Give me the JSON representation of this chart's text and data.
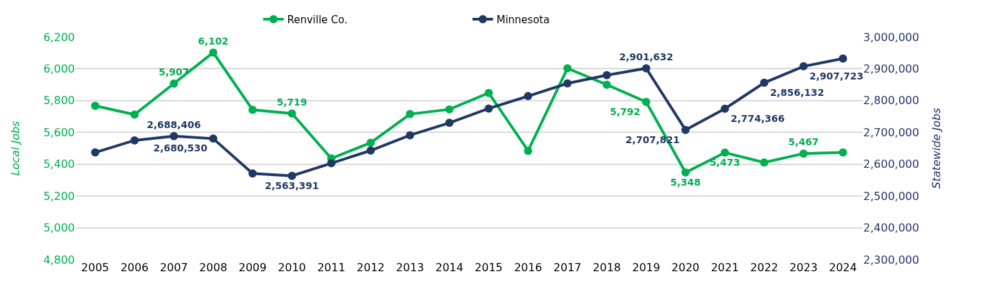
{
  "chart_data": {
    "type": "line",
    "ylabel": "Local Jobs",
    "y2label": "Statewide Jobs",
    "categories": [
      "2005",
      "2006",
      "2007",
      "2008",
      "2009",
      "2010",
      "2011",
      "2012",
      "2013",
      "2014",
      "2015",
      "2016",
      "2017",
      "2018",
      "2019",
      "2020",
      "2021",
      "2022",
      "2023",
      "2024"
    ],
    "series": [
      {
        "name": "Renville Co.",
        "color": "#00b050",
        "values": [
          5767,
          5712,
          5907,
          6102,
          5742,
          5719,
          5436,
          5535,
          5715,
          5745,
          5848,
          5484,
          6003,
          5900,
          5792,
          5348,
          5473,
          5411,
          5467,
          5474
        ],
        "value_labels": [
          null,
          null,
          "5,907",
          "6,102",
          null,
          "5,719",
          null,
          null,
          null,
          null,
          null,
          null,
          null,
          null,
          "5,792",
          "5,348",
          "5,473",
          null,
          "5,467",
          null
        ]
      },
      {
        "name": "Minnesota",
        "color": "#203864",
        "axis": "y2",
        "values": [
          2637000,
          2675000,
          2688406,
          2680530,
          2571000,
          2563391,
          2603000,
          2643000,
          2691000,
          2730000,
          2775000,
          2814000,
          2854000,
          2880000,
          2901632,
          2707821,
          2774366,
          2856132,
          2907723,
          2932000
        ],
        "value_labels": [
          null,
          null,
          "2,688,406",
          "2,680,530",
          null,
          "2,563,391",
          null,
          null,
          null,
          null,
          null,
          null,
          null,
          null,
          "2,901,632",
          "2,707,821",
          "2,774,366",
          "2,856,132",
          "2,907,723",
          null
        ]
      }
    ],
    "ylim": [
      4800,
      6200
    ],
    "yticks": [
      {
        "value": 4800,
        "label": "4,800"
      },
      {
        "value": 5000,
        "label": "5,000"
      },
      {
        "value": 5200,
        "label": "5,200"
      },
      {
        "value": 5400,
        "label": "5,400"
      },
      {
        "value": 5600,
        "label": "5,600"
      },
      {
        "value": 5800,
        "label": "5,800"
      },
      {
        "value": 6000,
        "label": "6,000"
      },
      {
        "value": 6200,
        "label": "6,200"
      }
    ],
    "y2lim": [
      2300000,
      3000000
    ],
    "y2ticks": [
      {
        "value": 2300000,
        "label": "2,300,000"
      },
      {
        "value": 2400000,
        "label": "2,400,000"
      },
      {
        "value": 2500000,
        "label": "2,500,000"
      },
      {
        "value": 2600000,
        "label": "2,600,000"
      },
      {
        "value": 2700000,
        "label": "2,700,000"
      },
      {
        "value": 2800000,
        "label": "2,800,000"
      },
      {
        "value": 2900000,
        "label": "2,900,000"
      },
      {
        "value": 3000000,
        "label": "3,000,000"
      }
    ],
    "grid": "y",
    "legend": "top",
    "marker": "circle",
    "line_style": "solid"
  }
}
